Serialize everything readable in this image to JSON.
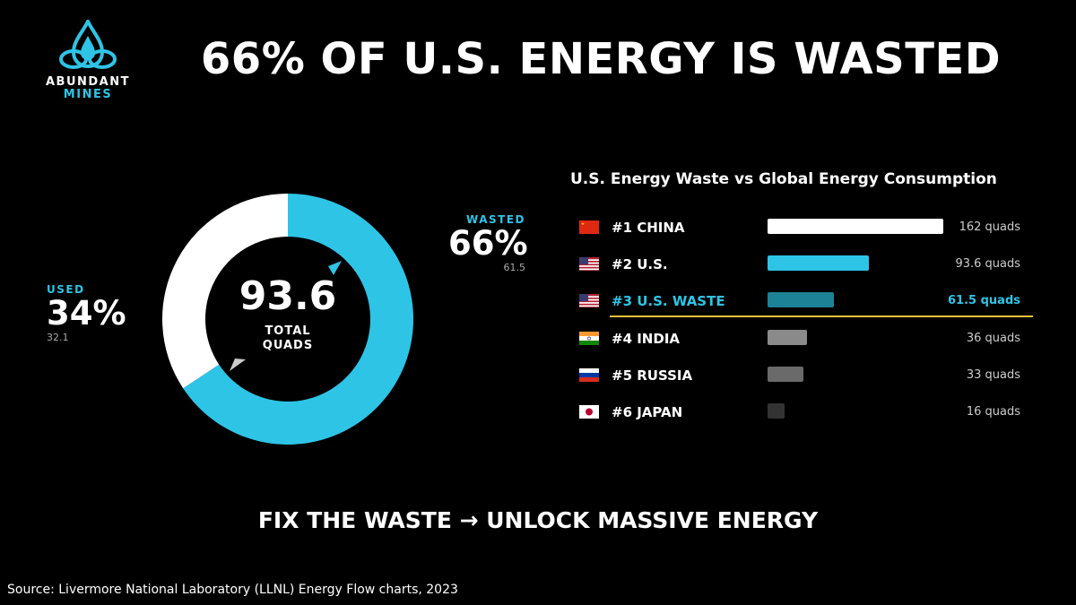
{
  "logo": {
    "line1": "ABUNDANT",
    "line2": "MINES",
    "icon": "water-drop-knot-icon"
  },
  "title": "66% OF U.S. ENERGY IS WASTED",
  "tagline": "FIX THE WASTE → UNLOCK MASSIVE ENERGY",
  "source": "Source: Livermore National Laboratory (LLNL) Energy Flow charts, 2023",
  "colors": {
    "accent": "#2ec4e6",
    "used": "#ffffff",
    "divider": "#f0c23a",
    "background": "#000000"
  },
  "chart_data": [
    {
      "type": "pie",
      "style": "donut",
      "center_value": "93.6",
      "center_label_line1": "TOTAL",
      "center_label_line2": "QUADS",
      "slices": [
        {
          "name": "WASTED",
          "percent_label": "66%",
          "value": 61.5,
          "value_label": "61.5",
          "color": "#2ec4e6"
        },
        {
          "name": "USED",
          "percent_label": "34%",
          "value": 32.1,
          "value_label": "32.1",
          "color": "#ffffff"
        }
      ]
    },
    {
      "type": "bar",
      "orientation": "horizontal",
      "title": "U.S. Energy Waste vs Global Energy Consumption",
      "rows": [
        {
          "label": "#1 CHINA",
          "flag": "china-flag-icon",
          "value": 162,
          "value_label": "162 quads",
          "color": "#ffffff"
        },
        {
          "label": "#2 U.S.",
          "flag": "us-flag-icon",
          "value": 93.6,
          "value_label": "93.6 quads",
          "color": "#2ec4e6"
        },
        {
          "label": "#3 U.S. WASTE",
          "flag": "us-flag-icon",
          "value": 61.5,
          "value_label": "61.5 quads",
          "color": "#1e8296",
          "highlight": true
        },
        {
          "label": "#4 INDIA",
          "flag": "india-flag-icon",
          "value": 36,
          "value_label": "36 quads",
          "color": "#8a8a8a"
        },
        {
          "label": "#5 RUSSIA",
          "flag": "russia-flag-icon",
          "value": 33,
          "value_label": "33 quads",
          "color": "#6a6a6a"
        },
        {
          "label": "#6 JAPAN",
          "flag": "japan-flag-icon",
          "value": 16,
          "value_label": "16 quads",
          "color": "#333333"
        }
      ]
    }
  ]
}
